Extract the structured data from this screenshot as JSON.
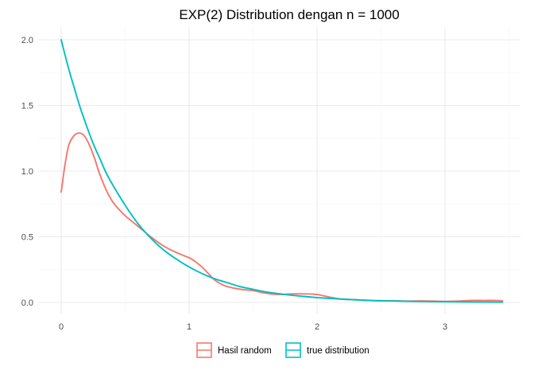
{
  "chart_data": {
    "type": "line",
    "title": "EXP(2) Distribution dengan n = 1000",
    "xlabel": "",
    "ylabel": "",
    "xlim": [
      0,
      3.5
    ],
    "ylim": [
      0,
      2.0
    ],
    "x_ticks": [
      0,
      1,
      2,
      3
    ],
    "x_tick_labels": [
      "0",
      "1",
      "2",
      "3"
    ],
    "y_ticks": [
      0,
      0.5,
      1.0,
      1.5,
      2.0
    ],
    "y_tick_labels": [
      "0.0",
      "0.5",
      "1.0",
      "1.5",
      "2.0"
    ],
    "grid": true,
    "legend_position": "bottom",
    "series": [
      {
        "name": "Hasil random",
        "color": "#F8766D",
        "x": [
          0.0,
          0.03,
          0.06,
          0.1,
          0.14,
          0.18,
          0.22,
          0.26,
          0.3,
          0.35,
          0.4,
          0.45,
          0.5,
          0.55,
          0.6,
          0.7,
          0.8,
          0.9,
          1.0,
          1.05,
          1.1,
          1.15,
          1.2,
          1.25,
          1.3,
          1.4,
          1.5,
          1.6,
          1.7,
          1.8,
          1.9,
          2.0,
          2.1,
          2.2,
          2.3,
          2.4,
          2.5,
          2.6,
          2.7,
          2.8,
          2.9,
          3.0,
          3.1,
          3.2,
          3.3,
          3.4,
          3.45
        ],
        "y": [
          0.84,
          1.05,
          1.2,
          1.27,
          1.29,
          1.27,
          1.2,
          1.1,
          0.98,
          0.86,
          0.77,
          0.71,
          0.66,
          0.62,
          0.58,
          0.5,
          0.43,
          0.38,
          0.34,
          0.31,
          0.27,
          0.22,
          0.17,
          0.14,
          0.12,
          0.1,
          0.09,
          0.07,
          0.06,
          0.065,
          0.065,
          0.06,
          0.04,
          0.025,
          0.02,
          0.015,
          0.012,
          0.013,
          0.01,
          0.012,
          0.01,
          0.008,
          0.01,
          0.015,
          0.015,
          0.015,
          0.012
        ]
      },
      {
        "name": "true distribution",
        "color": "#00BFC4",
        "x": [
          0.0,
          0.05,
          0.1,
          0.15,
          0.2,
          0.25,
          0.3,
          0.35,
          0.4,
          0.5,
          0.6,
          0.7,
          0.8,
          0.9,
          1.0,
          1.1,
          1.2,
          1.3,
          1.4,
          1.5,
          1.6,
          1.8,
          2.0,
          2.2,
          2.4,
          2.6,
          2.8,
          3.0,
          3.2,
          3.45
        ],
        "y": [
          2.0,
          1.81,
          1.64,
          1.48,
          1.34,
          1.21,
          1.1,
          0.99,
          0.9,
          0.74,
          0.6,
          0.49,
          0.4,
          0.33,
          0.27,
          0.22,
          0.18,
          0.15,
          0.12,
          0.1,
          0.08,
          0.055,
          0.037,
          0.025,
          0.016,
          0.011,
          0.007,
          0.005,
          0.003,
          0.002
        ]
      }
    ]
  }
}
